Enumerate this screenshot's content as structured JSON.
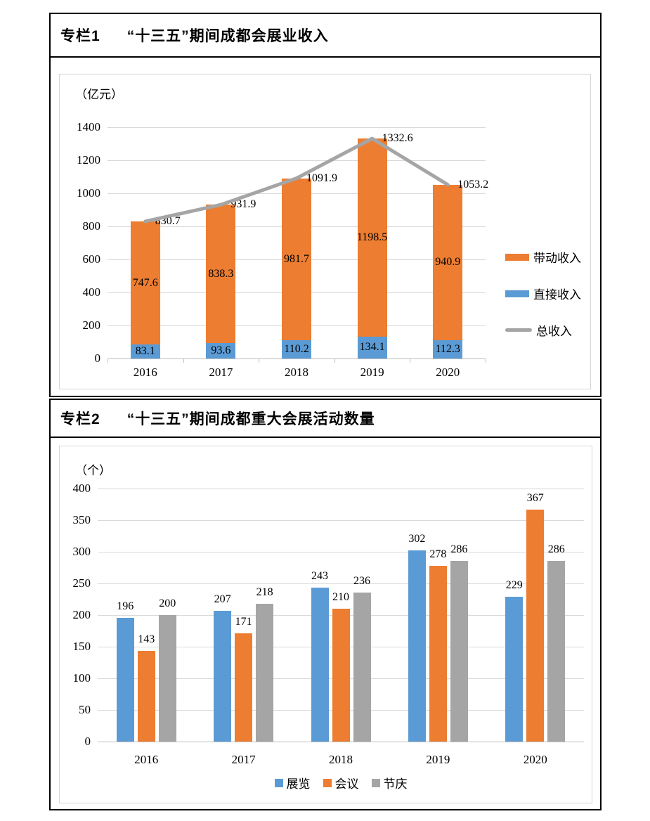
{
  "panels": [
    {
      "tag": "专栏1",
      "title": "“十三五”期间成都会展业收入",
      "unit": "（亿元）"
    },
    {
      "tag": "专栏2",
      "title": "“十三五”期间成都重大会展活动数量",
      "unit": "（个）"
    }
  ],
  "chart_data": [
    {
      "type": "bar",
      "subtype": "stacked-bars-with-total-line",
      "title": "专栏1 “十三五”期间成都会展业收入",
      "unit_label": "（亿元）",
      "categories": [
        "2016",
        "2017",
        "2018",
        "2019",
        "2020"
      ],
      "series": [
        {
          "name": "直接收入",
          "role": "bar-bottom",
          "color": "#5b9bd5",
          "values": [
            83.1,
            93.6,
            110.2,
            134.1,
            112.3
          ]
        },
        {
          "name": "带动收入",
          "role": "bar-top",
          "color": "#ed7d31",
          "values": [
            747.6,
            838.3,
            981.7,
            1198.5,
            940.9
          ]
        },
        {
          "name": "总收入",
          "role": "line",
          "color": "#a5a5a5",
          "values": [
            830.7,
            931.9,
            1091.9,
            1332.6,
            1053.2
          ]
        }
      ],
      "legend": [
        {
          "label": "带动收入",
          "swatch": "bar",
          "color": "#ed7d31"
        },
        {
          "label": "直接收入",
          "swatch": "bar",
          "color": "#5b9bd5"
        },
        {
          "label": "总收入",
          "swatch": "line",
          "color": "#a5a5a5"
        }
      ],
      "ylim": [
        0,
        1400
      ],
      "ytick_step": 200,
      "grid": true,
      "legend_position": "right"
    },
    {
      "type": "bar",
      "subtype": "grouped",
      "title": "专栏2 “十三五”期间成都重大会展活动数量",
      "unit_label": "（个）",
      "categories": [
        "2016",
        "2017",
        "2018",
        "2019",
        "2020"
      ],
      "series": [
        {
          "name": "展览",
          "color": "#5b9bd5",
          "values": [
            196,
            207,
            243,
            302,
            229
          ]
        },
        {
          "name": "会议",
          "color": "#ed7d31",
          "values": [
            143,
            171,
            210,
            278,
            367
          ]
        },
        {
          "name": "节庆",
          "color": "#a5a5a5",
          "values": [
            200,
            218,
            236,
            286,
            286
          ]
        }
      ],
      "legend": [
        {
          "label": "展览",
          "swatch": "square",
          "color": "#5b9bd5"
        },
        {
          "label": "会议",
          "swatch": "square",
          "color": "#ed7d31"
        },
        {
          "label": "节庆",
          "swatch": "square",
          "color": "#a5a5a5"
        }
      ],
      "ylim": [
        0,
        400
      ],
      "ytick_step": 50,
      "grid": true,
      "legend_position": "bottom"
    }
  ],
  "colors": {
    "blue": "#5b9bd5",
    "orange": "#ed7d31",
    "gray": "#a5a5a5",
    "gridline": "#d9d9d9",
    "axis": "#bfbfbf",
    "border": "#000000"
  }
}
